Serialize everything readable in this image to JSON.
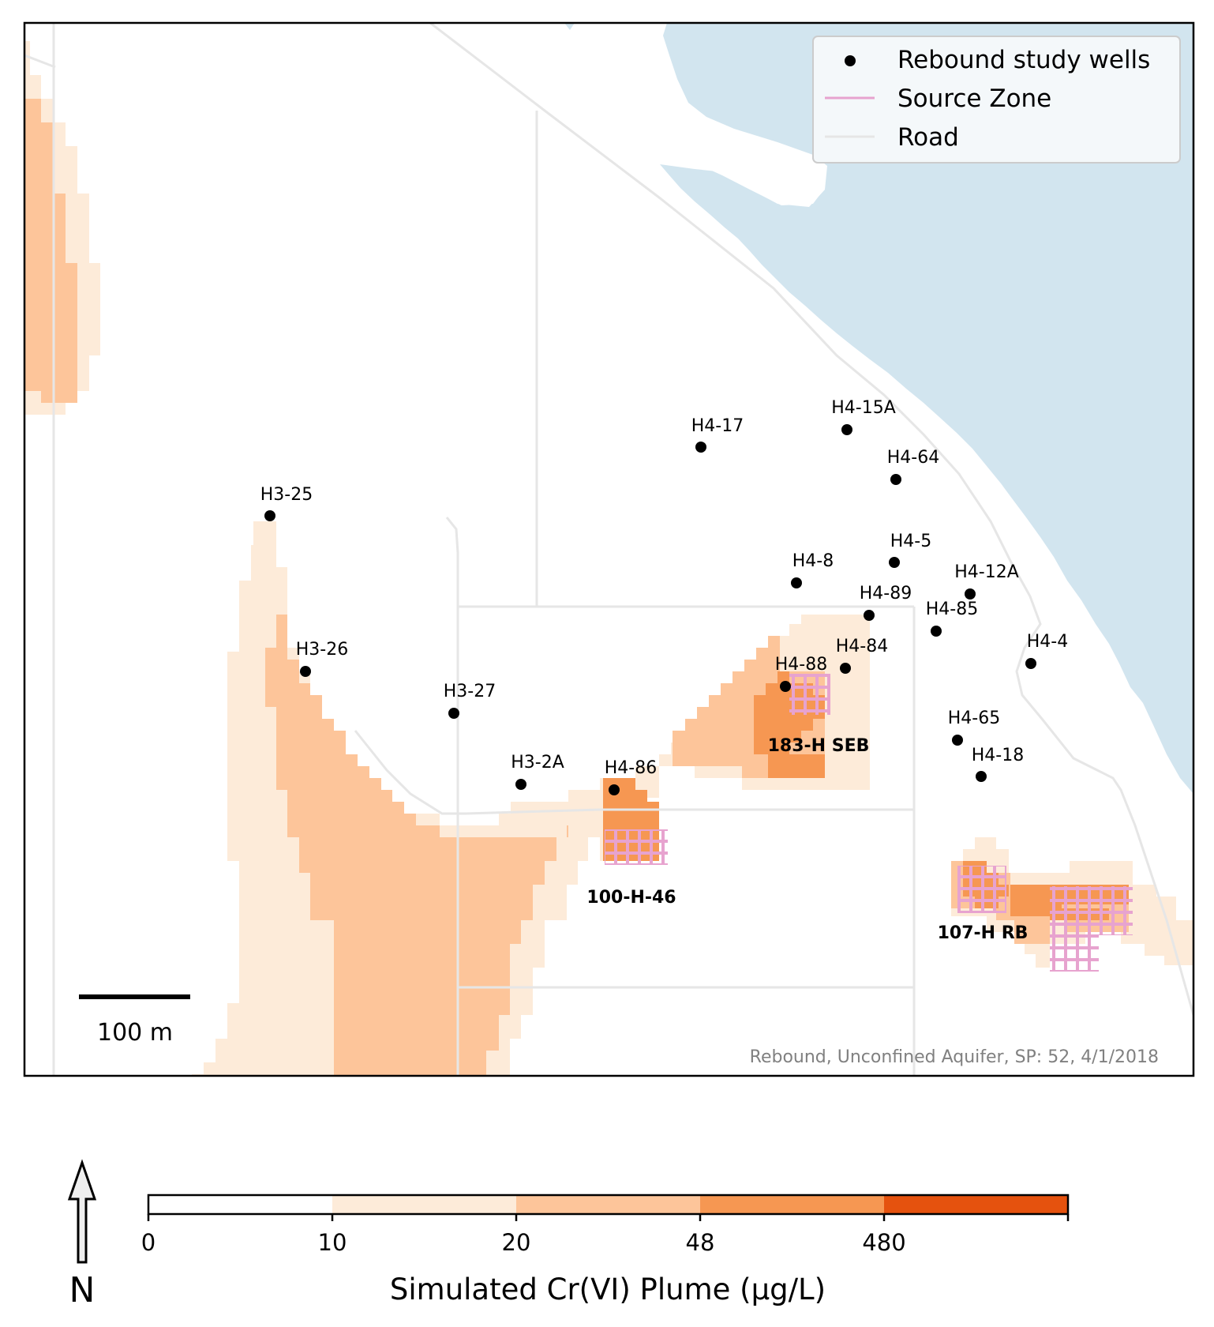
{
  "colors": {
    "water": "#d2e5ef",
    "road": "#e6e6e6",
    "source_zone": "#e7a3cf",
    "well": "#000000",
    "plume_10_20": "#fdebd9",
    "plume_20_48": "#fdc59a",
    "plume_48_480": "#f69752",
    "plume_480_plus": "#e5520e"
  },
  "legend": {
    "wells_label": "Rebound study wells",
    "source_zone_label": "Source Zone",
    "road_label": "Road"
  },
  "wells": [
    {
      "label": "H3-25"
    },
    {
      "label": "H3-26"
    },
    {
      "label": "H3-27"
    },
    {
      "label": "H3-2A"
    },
    {
      "label": "H4-86"
    },
    {
      "label": "H4-17"
    },
    {
      "label": "H4-15A"
    },
    {
      "label": "H4-64"
    },
    {
      "label": "H4-5"
    },
    {
      "label": "H4-8"
    },
    {
      "label": "H4-89"
    },
    {
      "label": "H4-12A"
    },
    {
      "label": "H4-85"
    },
    {
      "label": "H4-4"
    },
    {
      "label": "H4-84"
    },
    {
      "label": "H4-88"
    },
    {
      "label": "H4-65"
    },
    {
      "label": "H4-18"
    }
  ],
  "zones": [
    {
      "label": "183-H SEB"
    },
    {
      "label": "100-H-46"
    },
    {
      "label": "107-H RB"
    }
  ],
  "scale_bar": {
    "label": "100 m"
  },
  "map_note": "Rebound, Unconfined Aquifer, SP: 52, 4/1/2018",
  "north": {
    "label": "N"
  },
  "colorbar": {
    "title": "Simulated Cr(VI) Plume (μg/L)",
    "ticks": [
      "0",
      "10",
      "20",
      "48",
      "480"
    ]
  }
}
